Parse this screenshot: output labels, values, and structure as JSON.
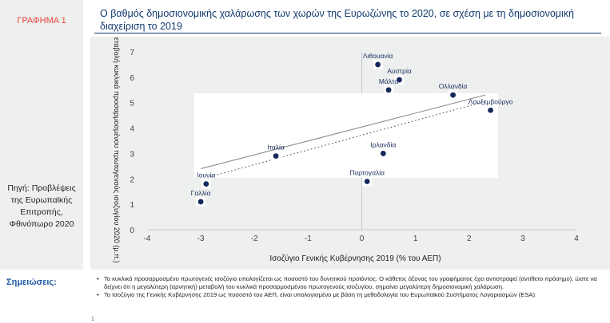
{
  "figure_label": "ΓΡΑΦΗΜΑ 1",
  "title": "Ο βαθμός δημοσιονομικής χαλάρωσης των χωρών της Ευρωζώνης το 2020, σε σχέση με τη δημοσιονομική διαχείριση το 2019",
  "source": "Πηγή: Προβλέψεις της Ευρωπαϊκής Επιτροπής, Φθινόπωρο 2020",
  "notes_label": "Σημειώσεις:",
  "notes": [
    "Το κυκλικά προσαρμοσμένο πρωτογενές ισοζύγιο υπολογίζεται ως ποσοστό του δυνητικού προϊόντος. Ο κάθετος άξονας του γραφήματος έχει αντιστραφεί (αντίθετο πρόσημο), ώστε να δείχνει ότι η μεγαλύτερη (αρνητική) μεταβολή του κυκλικά προσαρμοσμένου πρωτογενούς ισοζυγίου, σημαίνει μεγαλύτερη δημοσιονομική χαλάρωση.",
    "Το Ισοζύγιο της Γενικής Κυβέρνησης 2019 ως ποσοστό του ΑΕΠ, είναι υπολογισμένο με βάση τη μεθοδολογία του Ευρωπαϊκού Συστήματος Λογαριασμών (ESA)."
  ],
  "page_number": "1",
  "chart_data": {
    "type": "scatter",
    "xlabel": "Ισοζύγιο Γενικής Κυβέρνησης 2019 (% του ΑΕΠ)",
    "ylabel": "Μεταβολή κυκλικά προσαρμοσμένου πρωτογενούς ισοζυγίου 2020 (μ.π.)",
    "xlim": [
      -4,
      4
    ],
    "ylim": [
      0,
      7
    ],
    "x_ticks": [
      "-4",
      "-3",
      "-2",
      "-1",
      "0",
      "1",
      "2",
      "3",
      "4"
    ],
    "y_ticks": [
      "0",
      "1",
      "2",
      "3",
      "4",
      "5",
      "6",
      "7"
    ],
    "points": [
      {
        "label": "Λιθουανία",
        "x": 0.3,
        "y": 6.5
      },
      {
        "label": "Αυστρία",
        "x": 0.7,
        "y": 5.9
      },
      {
        "label": "Μάλτα",
        "x": 0.5,
        "y": 5.5
      },
      {
        "label": "Ολλανδία",
        "x": 1.7,
        "y": 5.3
      },
      {
        "label": "Λουξεμβούργο",
        "x": 2.4,
        "y": 4.7
      },
      {
        "label": "Ιταλία",
        "x": -1.6,
        "y": 2.9
      },
      {
        "label": "Ιρλανδία",
        "x": 0.4,
        "y": 3.0
      },
      {
        "label": "Ιουνία",
        "x": -2.9,
        "y": 1.8
      },
      {
        "label": "Γαλλία",
        "x": -3.0,
        "y": 1.1
      },
      {
        "label": "Πορτογαλία",
        "x": 0.1,
        "y": 1.9
      }
    ],
    "trendline": {
      "x": [
        -3.0,
        2.3
      ],
      "y": [
        2.4,
        5.3
      ]
    },
    "grid": false,
    "legend": "none",
    "colors": {
      "marker": "#14285a",
      "trend": "#8a8a8a",
      "axis": "#c9c9c9",
      "label_text": "#1d2f63"
    }
  }
}
